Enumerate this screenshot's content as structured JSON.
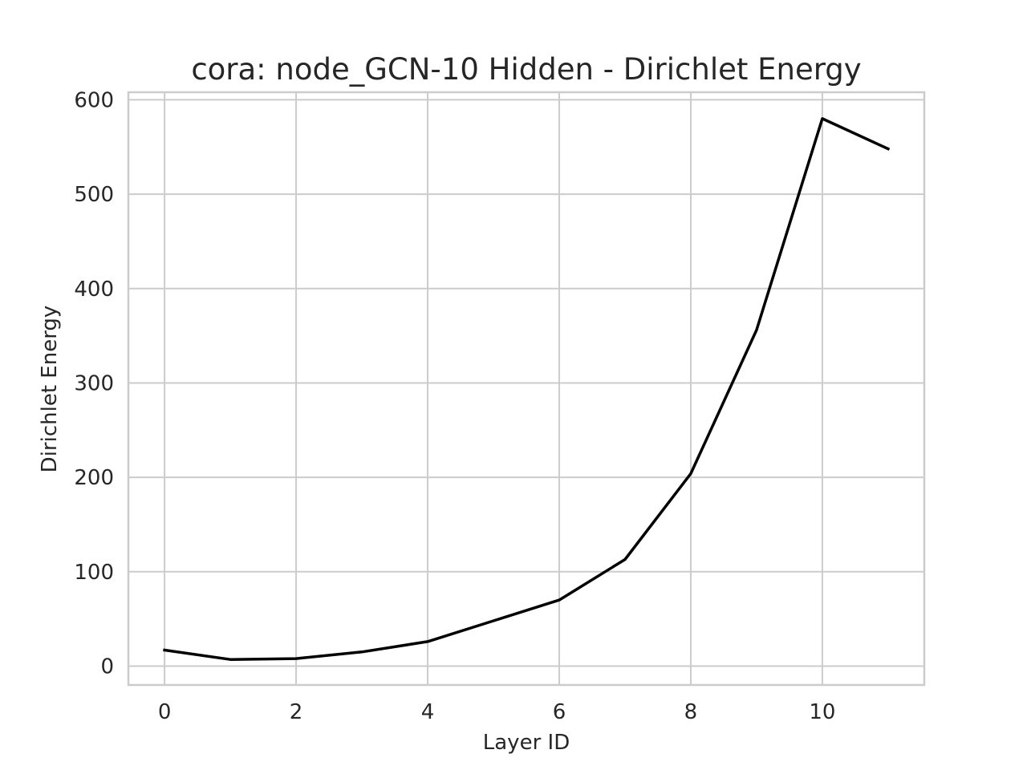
{
  "chart_data": {
    "type": "line",
    "title": "cora: node_GCN-10 Hidden - Dirichlet Energy",
    "xlabel": "Layer ID",
    "ylabel": "Dirichlet Energy",
    "xlim": [
      -0.55,
      11.55
    ],
    "ylim": [
      -20,
      608
    ],
    "x_ticks": [
      0,
      2,
      4,
      6,
      8,
      10
    ],
    "y_ticks": [
      0,
      100,
      200,
      300,
      400,
      500,
      600
    ],
    "grid": true,
    "legend": false,
    "x": [
      0,
      1,
      2,
      3,
      4,
      5,
      6,
      7,
      8,
      9,
      10,
      11
    ],
    "series": [
      {
        "color": "#000000",
        "values": [
          17,
          7,
          8,
          15,
          26,
          48,
          70,
          113,
          204,
          356,
          580,
          548
        ]
      }
    ]
  }
}
